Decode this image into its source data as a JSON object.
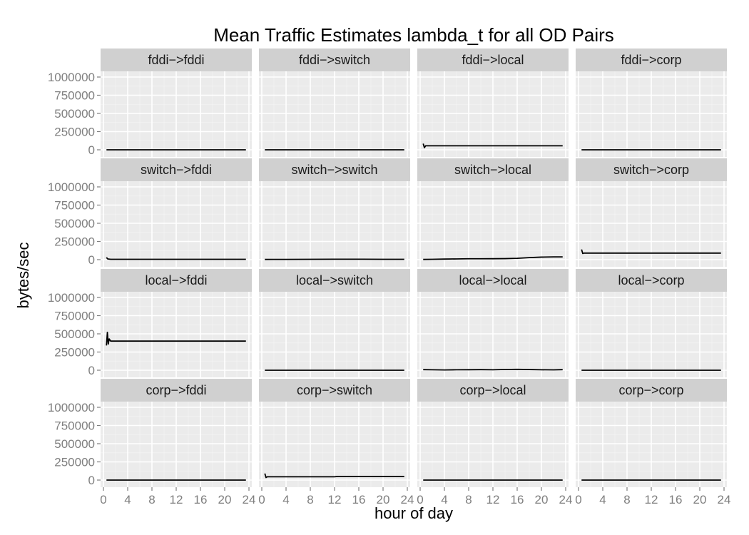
{
  "chart_data": {
    "type": "line",
    "title": "Mean Traffic Estimates lambda_t for all OD Pairs",
    "xlabel": "hour of day",
    "ylabel": "bytes/sec",
    "xlim": [
      0,
      24
    ],
    "ylim": [
      0,
      1000000
    ],
    "x_ticks": [
      0,
      4,
      8,
      12,
      16,
      20,
      24
    ],
    "y_ticks": [
      0,
      250000,
      500000,
      750000,
      1000000
    ],
    "grid": true,
    "facet_layout": {
      "rows": 4,
      "cols": 4
    },
    "panels": [
      {
        "label": "fddi->fddi",
        "x": [
          0.5,
          23.5
        ],
        "y": [
          0,
          0
        ]
      },
      {
        "label": "fddi->switch",
        "x": [
          0.5,
          23.5
        ],
        "y": [
          0,
          0
        ]
      },
      {
        "label": "fddi->local",
        "x": [
          0.5,
          0.7,
          0.9,
          4,
          8,
          12,
          16,
          20,
          23.5
        ],
        "y": [
          85000,
          30000,
          55000,
          55000,
          55000,
          55000,
          55000,
          55000,
          55000
        ]
      },
      {
        "label": "fddi->corp",
        "x": [
          0.5,
          23.5
        ],
        "y": [
          0,
          0
        ]
      },
      {
        "label": "switch->fddi",
        "x": [
          0.5,
          0.7,
          1.2,
          23.5
        ],
        "y": [
          30000,
          10000,
          5000,
          5000
        ]
      },
      {
        "label": "switch->switch",
        "x": [
          0.5,
          4,
          8,
          12,
          16,
          20,
          23.5
        ],
        "y": [
          3000,
          4000,
          5000,
          6000,
          6000,
          5000,
          5000
        ]
      },
      {
        "label": "switch->local",
        "x": [
          0.5,
          2,
          4,
          6,
          8,
          10,
          12,
          14,
          16,
          18,
          20,
          22,
          23.5
        ],
        "y": [
          3000,
          5000,
          8000,
          10000,
          12000,
          12000,
          13000,
          14000,
          18000,
          28000,
          35000,
          38000,
          38000
        ]
      },
      {
        "label": "switch->corp",
        "x": [
          0.5,
          0.7,
          0.9,
          4,
          8,
          12,
          16,
          20,
          23.5
        ],
        "y": [
          140000,
          85000,
          90000,
          90000,
          90000,
          90000,
          90000,
          90000,
          90000
        ]
      },
      {
        "label": "local->fddi",
        "x": [
          0.5,
          0.65,
          0.8,
          0.95,
          1.2,
          4,
          8,
          12,
          16,
          20,
          23.5
        ],
        "y": [
          340000,
          520000,
          360000,
          430000,
          400000,
          400000,
          400000,
          400000,
          400000,
          400000,
          400000
        ]
      },
      {
        "label": "local->switch",
        "x": [
          0.5,
          23.5
        ],
        "y": [
          0,
          0
        ]
      },
      {
        "label": "local->local",
        "x": [
          0.5,
          2,
          4,
          6,
          8,
          10,
          12,
          14,
          16,
          18,
          20,
          22,
          23.5
        ],
        "y": [
          8000,
          6000,
          4000,
          6000,
          7000,
          8000,
          6000,
          10000,
          12000,
          9000,
          6000,
          5000,
          8000
        ]
      },
      {
        "label": "local->corp",
        "x": [
          0.5,
          23.5
        ],
        "y": [
          0,
          0
        ]
      },
      {
        "label": "corp->fddi",
        "x": [
          0.5,
          23.5
        ],
        "y": [
          0,
          0
        ]
      },
      {
        "label": "corp->switch",
        "x": [
          0.5,
          0.7,
          0.9,
          4,
          8,
          12,
          12.5,
          16,
          20,
          23.5
        ],
        "y": [
          90000,
          35000,
          45000,
          45000,
          45000,
          45000,
          50000,
          50000,
          50000,
          50000
        ]
      },
      {
        "label": "corp->local",
        "x": [
          0.5,
          23.5
        ],
        "y": [
          0,
          0
        ]
      },
      {
        "label": "corp->corp",
        "x": [
          0.5,
          23.5
        ],
        "y": [
          0,
          0
        ]
      }
    ]
  }
}
